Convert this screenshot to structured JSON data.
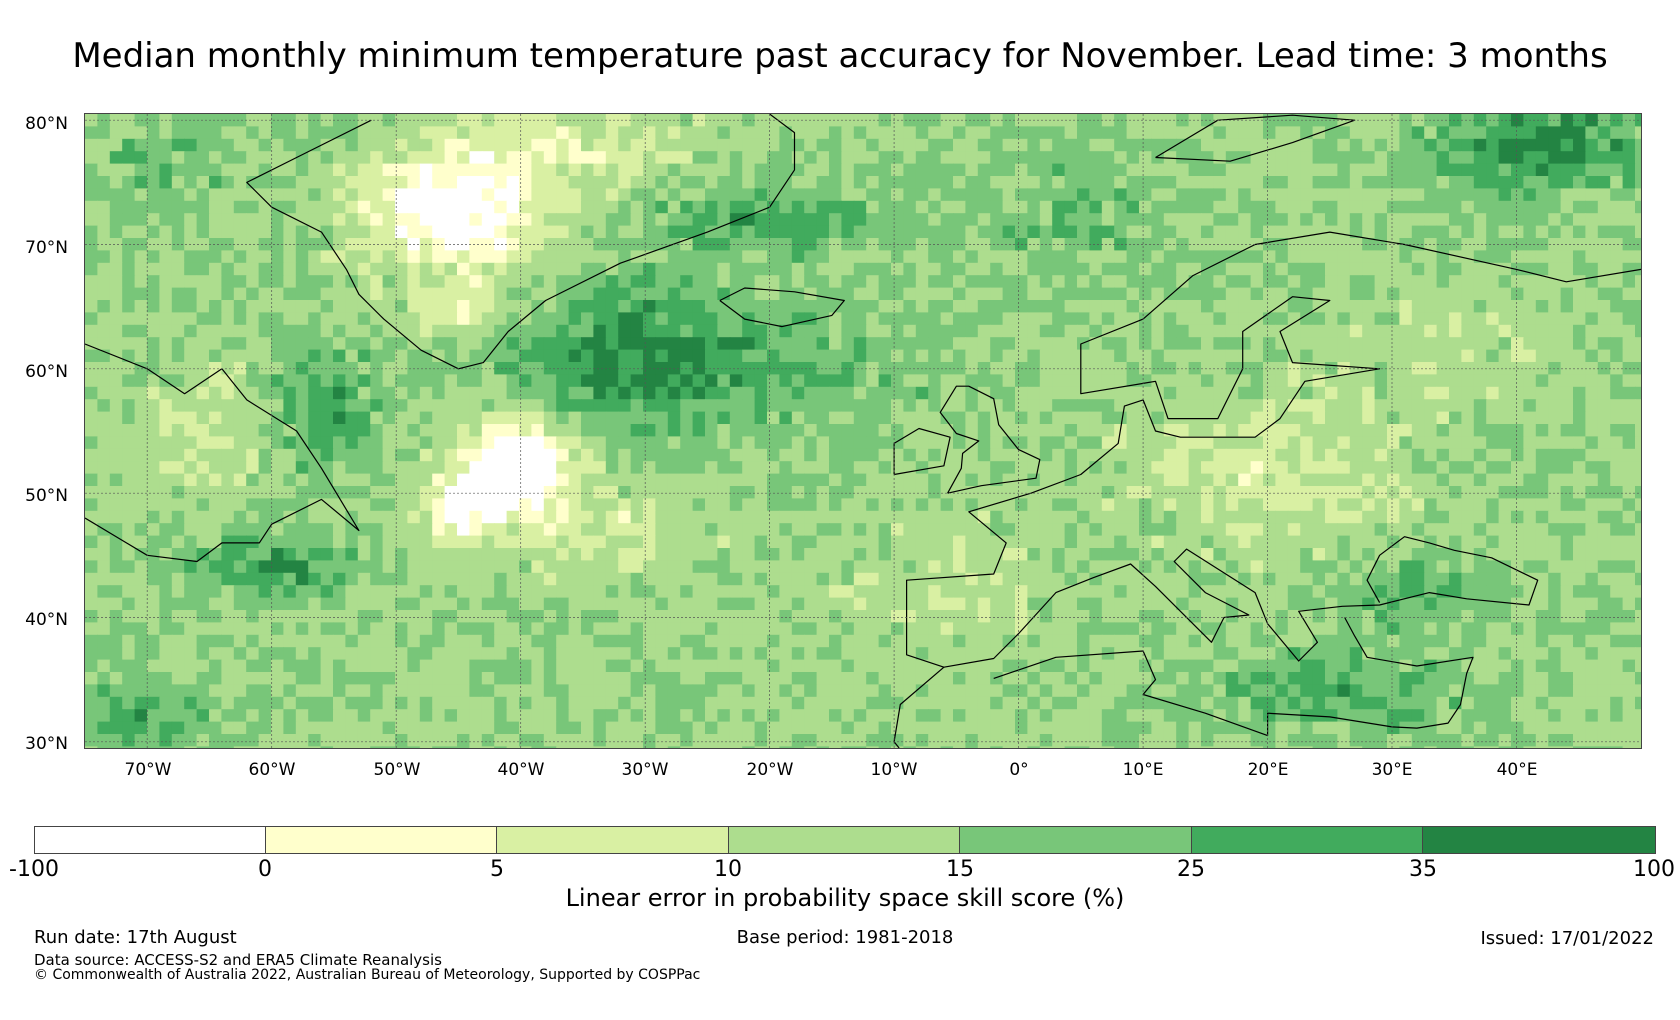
{
  "title": "Median monthly minimum temperature past accuracy for November. Lead time: 3 months",
  "map": {
    "lat_labels": [
      "80°N",
      "70°N",
      "60°N",
      "50°N",
      "40°N",
      "30°N"
    ],
    "lon_labels": [
      "70°W",
      "60°W",
      "50°W",
      "40°W",
      "30°W",
      "20°W",
      "10°W",
      "0°",
      "10°E",
      "20°E",
      "30°E",
      "40°E"
    ],
    "lat_range": [
      29.5,
      80.5
    ],
    "lon_range": [
      -75,
      50
    ],
    "gridlines": true
  },
  "colorbar": {
    "label": "Linear error in probability space skill score (%)",
    "ticks": [
      "-100",
      "0",
      "5",
      "10",
      "15",
      "25",
      "35",
      "100"
    ],
    "bins": [
      {
        "from": -100,
        "to": 0,
        "color": "#ffffff"
      },
      {
        "from": 0,
        "to": 5,
        "color": "#ffffcc"
      },
      {
        "from": 5,
        "to": 10,
        "color": "#d9f0a3"
      },
      {
        "from": 10,
        "to": 15,
        "color": "#addd8e"
      },
      {
        "from": 15,
        "to": 25,
        "color": "#78c679"
      },
      {
        "from": 25,
        "to": 35,
        "color": "#41ab5d"
      },
      {
        "from": 35,
        "to": 100,
        "color": "#238443"
      }
    ]
  },
  "footer": {
    "run_date": "Run date: 17th August",
    "base_period": "Base period: 1981-2018",
    "issued": "Issued: 17/01/2022",
    "data_source": "Data source: ACCESS-S2 and ERA5 Climate Reanalysis",
    "copyright": "© Commonwealth of Australia 2022, Australian Bureau of Meteorology, Supported by COSPPac"
  }
}
